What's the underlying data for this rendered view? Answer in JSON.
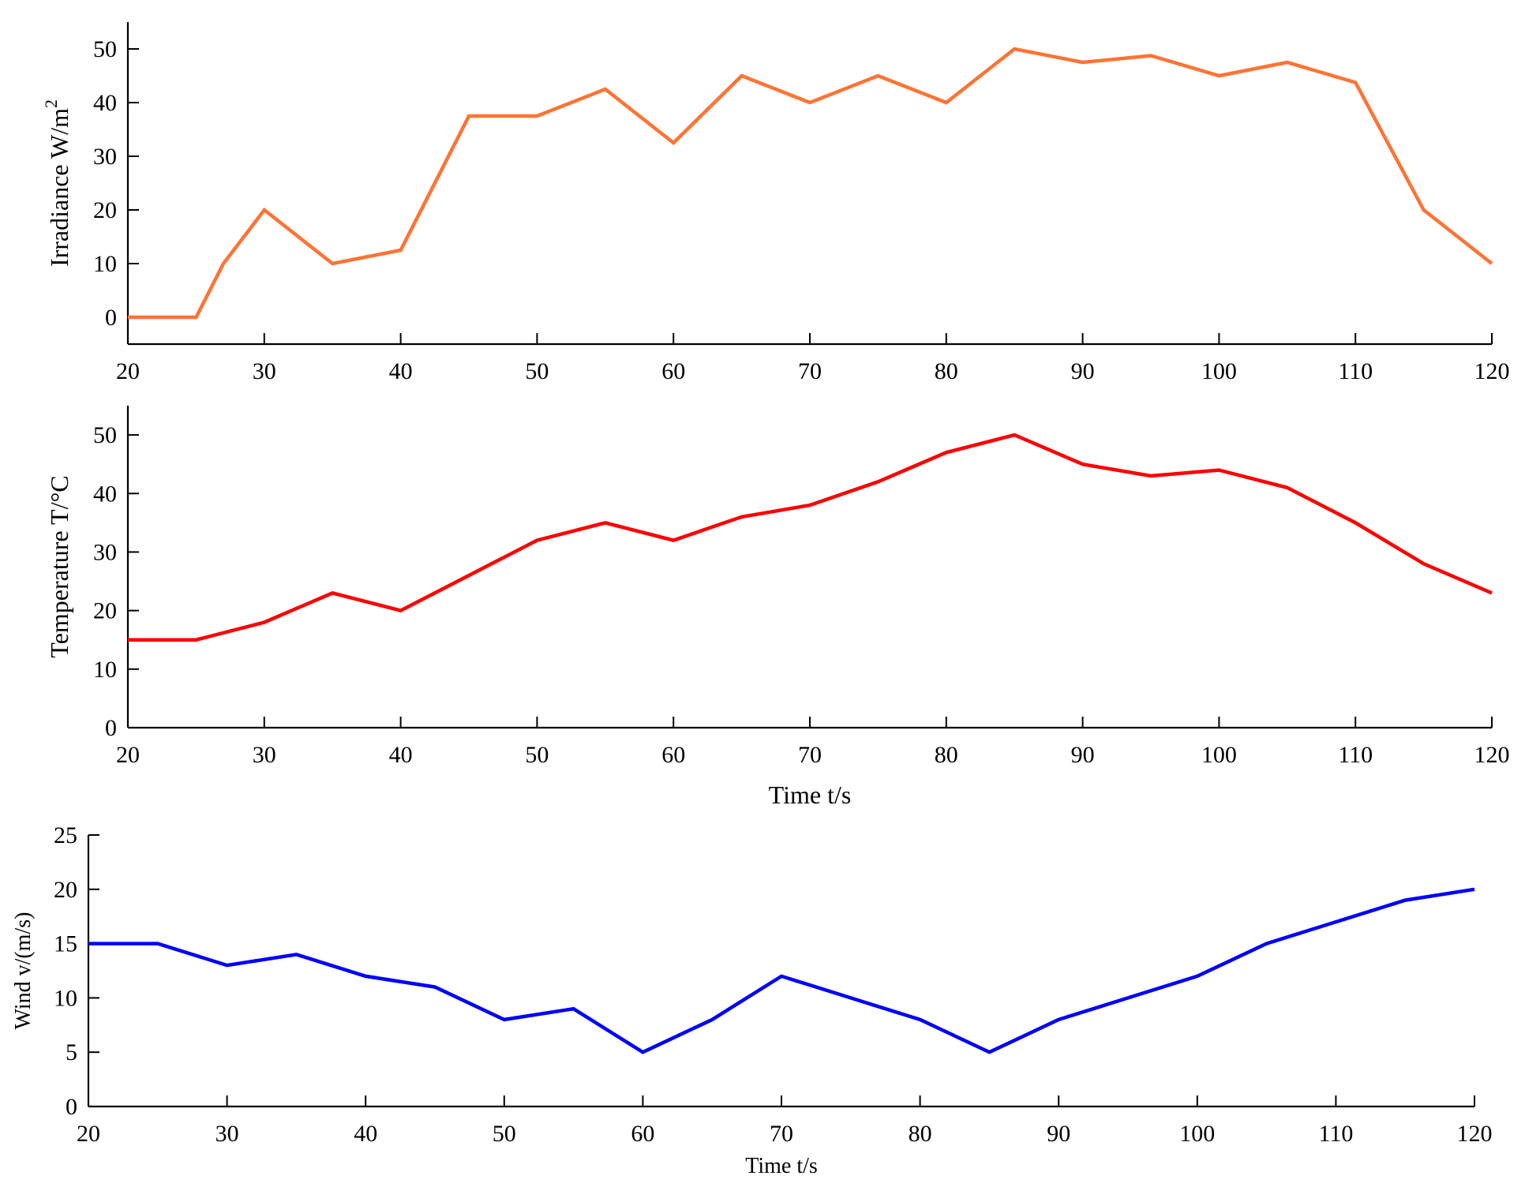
{
  "chart_data": [
    {
      "type": "line",
      "xlabel": "",
      "ylabel": "Irradiance W/m",
      "ylabel_sup": "2",
      "xlim": [
        20,
        120
      ],
      "ylim": [
        -5,
        55
      ],
      "xticks": [
        20,
        30,
        40,
        50,
        60,
        70,
        80,
        90,
        100,
        110,
        120
      ],
      "yticks": [
        0,
        10,
        20,
        30,
        40,
        50
      ],
      "color": "#ff7333",
      "x": [
        20,
        25,
        27,
        30,
        35,
        40,
        45,
        50,
        55,
        60,
        65,
        70,
        75,
        80,
        85,
        90,
        95,
        100,
        105,
        110,
        115,
        120
      ],
      "y": [
        0,
        0,
        10,
        20,
        10,
        12.5,
        37.5,
        37.5,
        42.5,
        32.5,
        45,
        40,
        45,
        40,
        50,
        47.5,
        48.75,
        45,
        47.5,
        43.75,
        20,
        10
      ]
    },
    {
      "type": "line",
      "xlabel": "Time t/s",
      "ylabel": "Temperature T/°C",
      "xlim": [
        20,
        120
      ],
      "ylim": [
        0,
        55
      ],
      "xticks": [
        20,
        30,
        40,
        50,
        60,
        70,
        80,
        90,
        100,
        110,
        120
      ],
      "yticks": [
        0,
        10,
        20,
        30,
        40,
        50
      ],
      "color": "#ff0000",
      "x": [
        20,
        25,
        30,
        35,
        40,
        45,
        50,
        55,
        60,
        65,
        70,
        75,
        80,
        85,
        90,
        95,
        100,
        105,
        110,
        115,
        120
      ],
      "y": [
        15,
        15,
        18,
        23,
        20,
        26,
        32,
        35,
        32,
        36,
        38,
        42,
        47,
        50,
        45,
        43,
        44,
        41,
        35,
        28,
        23
      ]
    },
    {
      "type": "line",
      "xlabel": "Time t/s",
      "ylabel": "Wind v/(m/s)",
      "xlim": [
        20,
        120
      ],
      "ylim": [
        0,
        25
      ],
      "xticks": [
        20,
        30,
        40,
        50,
        60,
        70,
        80,
        90,
        100,
        110,
        120
      ],
      "yticks": [
        0,
        5,
        10,
        15,
        20,
        25
      ],
      "color": "#0000ff",
      "x": [
        20,
        25,
        30,
        35,
        40,
        45,
        50,
        55,
        60,
        65,
        70,
        75,
        80,
        85,
        90,
        95,
        100,
        105,
        110,
        115,
        120
      ],
      "y": [
        15,
        15,
        13,
        14,
        12,
        11,
        8,
        9,
        5,
        8,
        12,
        10,
        8,
        5,
        8,
        10,
        12,
        15,
        17,
        19,
        20
      ]
    }
  ]
}
